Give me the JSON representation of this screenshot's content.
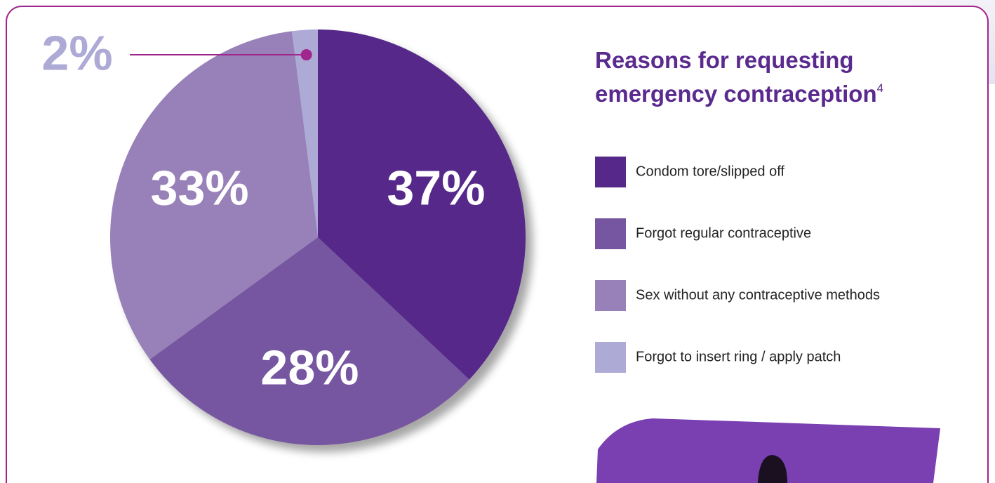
{
  "chart_data": {
    "type": "pie",
    "title": "Reasons for requesting emergency contraception",
    "title_footnote": "4",
    "categories": [
      "Condom tore/slipped off",
      "Forgot regular contraceptive",
      "Sex without any contraceptive methods",
      "Forgot to insert ring / apply patch"
    ],
    "values": [
      37,
      28,
      33,
      2
    ],
    "value_labels": [
      "37%",
      "28%",
      "33%",
      "2%"
    ],
    "colors": [
      "#55288a",
      "#7656a0",
      "#9880b8",
      "#adaad6"
    ]
  }
}
